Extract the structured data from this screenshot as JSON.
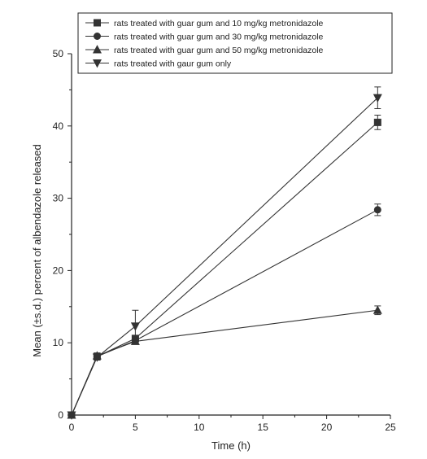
{
  "chart_data": {
    "type": "line",
    "xlabel": "Time (h)",
    "ylabel": "Mean (±s.d.) percent of albendazole released",
    "xlim": [
      0,
      25
    ],
    "ylim": [
      0,
      50
    ],
    "xticks": [
      0,
      5,
      10,
      15,
      20,
      25
    ],
    "yticks": [
      0,
      10,
      20,
      30,
      40,
      50
    ],
    "grid": false,
    "legend_position": "top-right",
    "series": [
      {
        "name": "rats treated with guar gum and 10 mg/kg metronidazole",
        "marker": "square",
        "x": [
          0,
          2,
          5,
          24
        ],
        "y": [
          0,
          8.1,
          10.6,
          40.5
        ],
        "err": [
          0,
          0.4,
          0.4,
          1.0
        ]
      },
      {
        "name": "rats treated with guar gum and 30 mg/kg metronidazole",
        "marker": "circle",
        "x": [
          0,
          2,
          5,
          24
        ],
        "y": [
          0,
          8.1,
          10.3,
          28.4
        ],
        "err": [
          0,
          0.4,
          0.4,
          0.8
        ]
      },
      {
        "name": "rats treated with guar gum and 50 mg/kg metronidazole",
        "marker": "triangle-up",
        "x": [
          0,
          2,
          5,
          24
        ],
        "y": [
          0,
          8.2,
          10.2,
          14.5
        ],
        "err": [
          0,
          0.4,
          0.4,
          0.6
        ]
      },
      {
        "name": "rats treated with gaur gum only",
        "marker": "triangle-down",
        "x": [
          0,
          2,
          5,
          24
        ],
        "y": [
          0,
          8.0,
          12.3,
          43.9
        ],
        "err": [
          0,
          0.4,
          2.2,
          1.5
        ]
      }
    ]
  }
}
